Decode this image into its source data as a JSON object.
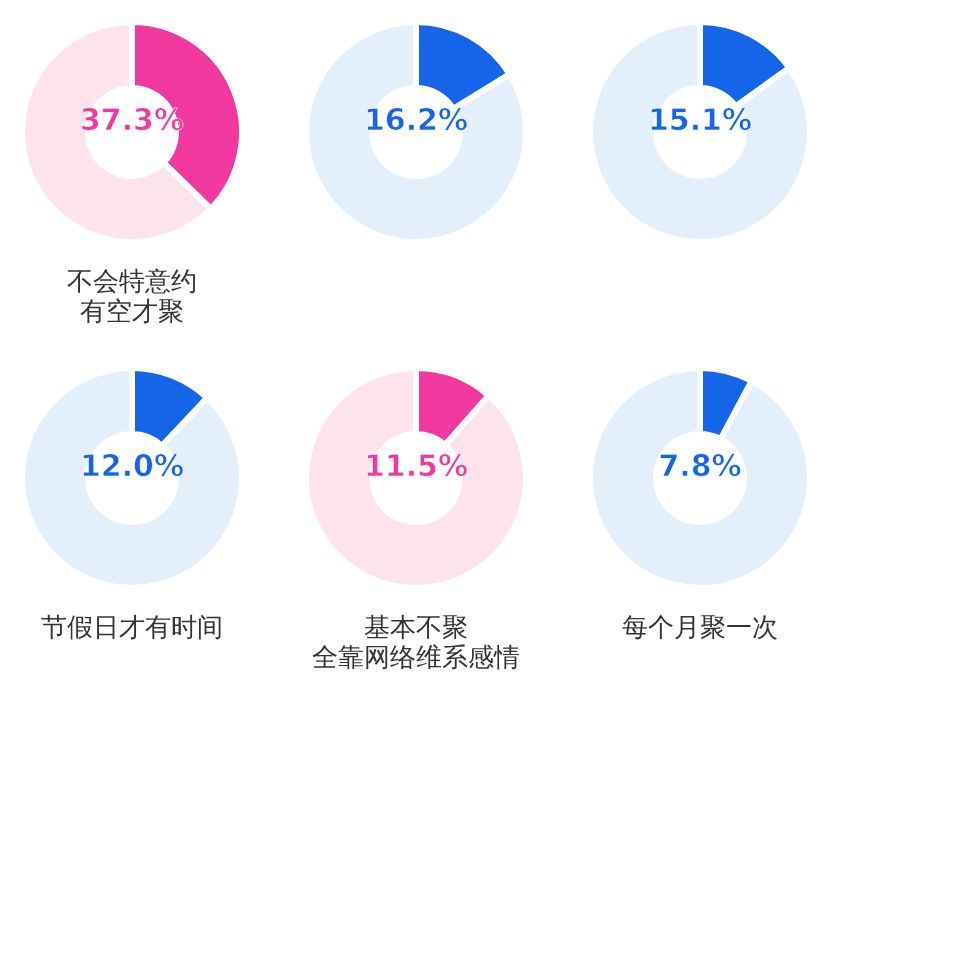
{
  "chart_data": [
    {
      "type": "donut",
      "xlabel": [
        "不会特意约",
        "有空才聚"
      ],
      "categories": [
        null,
        null
      ],
      "values": [
        37.3,
        62.7
      ],
      "colors": [
        "#f0389f",
        "#fde3ec"
      ],
      "value_labels": [
        "37.3%",
        null
      ]
    },
    {
      "type": "donut",
      "categories": [
        null,
        null
      ],
      "values": [
        16.2,
        83.8
      ],
      "colors": [
        "#1565e8",
        "#e4effc"
      ],
      "value_labels": [
        "16.2%",
        null
      ]
    },
    {
      "type": "donut",
      "categories": [
        null,
        null
      ],
      "values": [
        15.1,
        84.9
      ],
      "colors": [
        "#1565e8",
        "#e4effc"
      ],
      "value_labels": [
        "15.1%",
        null
      ]
    },
    {
      "type": "donut",
      "xlabel": [
        "节假日才有时间"
      ],
      "categories": [
        null,
        null
      ],
      "values": [
        12.0,
        88.0
      ],
      "colors": [
        "#1565e8",
        "#e4effc"
      ],
      "value_labels": [
        "12.0%",
        null
      ]
    },
    {
      "type": "donut",
      "xlabel": [
        "基本不聚",
        "全靠网络维系感情"
      ],
      "categories": [
        null,
        null
      ],
      "values": [
        11.5,
        88.5
      ],
      "colors": [
        "#f0389f",
        "#fde3ec"
      ],
      "value_labels": [
        "11.5%",
        null
      ]
    },
    {
      "type": "donut",
      "xlabel": [
        "每个月聚一次"
      ],
      "categories": [
        null,
        null
      ],
      "values": [
        7.8,
        92.2
      ],
      "colors": [
        "#1565e8",
        "#e4effc"
      ],
      "value_labels": [
        "7.8%",
        null
      ]
    }
  ]
}
